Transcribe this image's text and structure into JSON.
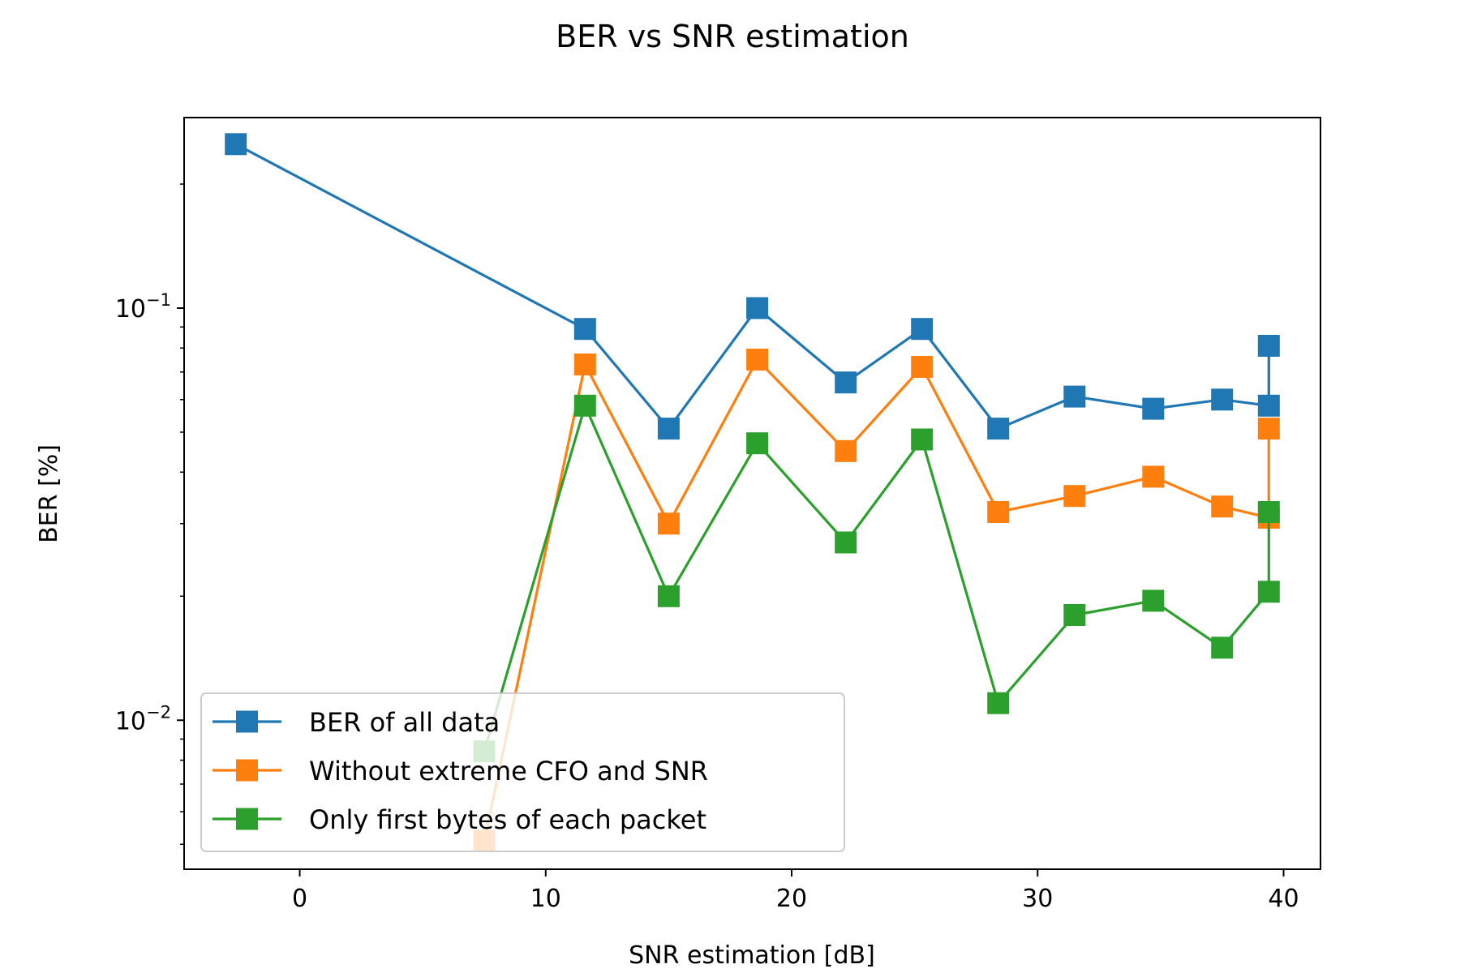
{
  "chart_data": {
    "type": "line",
    "title": "BER vs SNR estimation",
    "xlabel": "SNR estimation [dB]",
    "ylabel": "BER [%]",
    "xlim": [
      -4.7,
      41.5
    ],
    "ylim": [
      0.00435,
      0.29
    ],
    "y_scale": "log",
    "x_ticks": [
      0,
      10,
      20,
      30,
      40
    ],
    "x_tick_labels": [
      "0",
      "10",
      "20",
      "30",
      "40"
    ],
    "y_ticks": [
      0.1,
      0.01
    ],
    "y_tick_labels": [
      {
        "base": "10",
        "exp": "−1"
      },
      {
        "base": "10",
        "exp": "−2"
      }
    ],
    "grid": false,
    "legend_position": "lower-left",
    "marker": "square",
    "series": [
      {
        "name": "BER of all data",
        "color": "#1f77b4",
        "x": [
          -2.6,
          11.6,
          15.0,
          18.6,
          22.2,
          25.3,
          28.4,
          31.5,
          34.7,
          37.5,
          39.4,
          39.4
        ],
        "y": [
          0.25,
          0.089,
          0.051,
          0.1,
          0.066,
          0.089,
          0.051,
          0.061,
          0.057,
          0.06,
          0.058,
          0.081
        ]
      },
      {
        "name": "Without extreme CFO and SNR",
        "color": "#ff7f0e",
        "x": [
          7.5,
          11.6,
          15.0,
          18.6,
          22.2,
          25.3,
          28.4,
          31.5,
          34.7,
          37.5,
          39.4,
          39.4
        ],
        "y": [
          0.0051,
          0.073,
          0.03,
          0.075,
          0.045,
          0.072,
          0.032,
          0.035,
          0.039,
          0.033,
          0.031,
          0.051
        ]
      },
      {
        "name": "Only first bytes of each packet",
        "color": "#2ca02c",
        "x": [
          7.5,
          11.6,
          15.0,
          18.6,
          22.2,
          25.3,
          28.4,
          31.5,
          34.7,
          37.5,
          39.4,
          39.4
        ],
        "y": [
          0.0084,
          0.058,
          0.02,
          0.047,
          0.027,
          0.048,
          0.011,
          0.018,
          0.0195,
          0.015,
          0.0205,
          0.032
        ]
      }
    ]
  }
}
